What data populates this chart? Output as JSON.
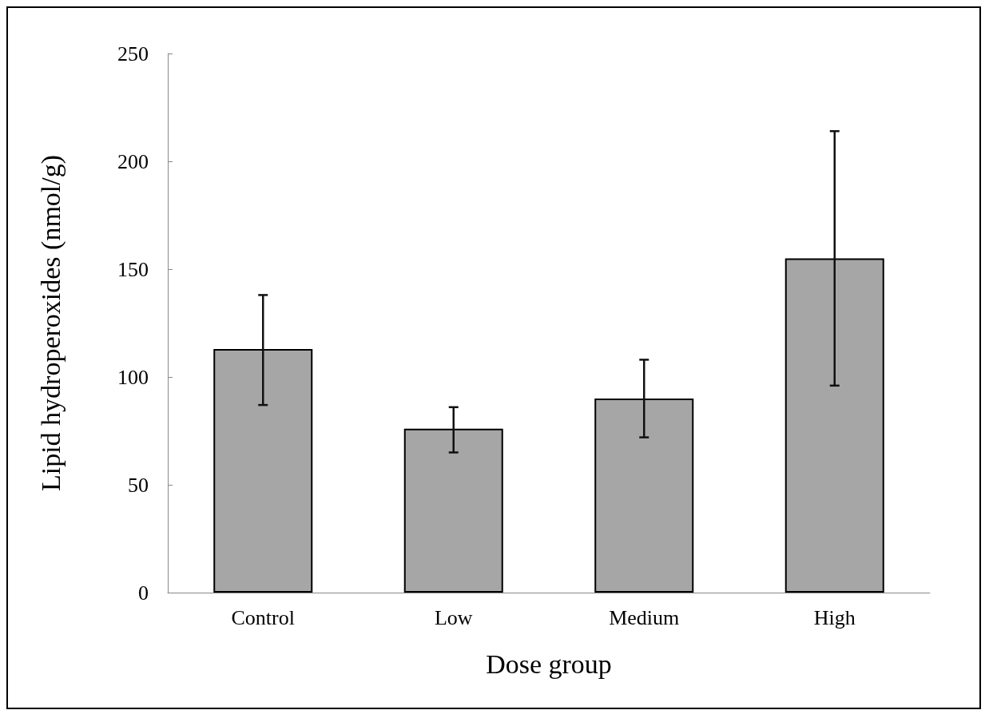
{
  "chart_data": {
    "type": "bar",
    "xlabel": "Dose group",
    "ylabel": "Lipid hydroperoxides (nmol/g)",
    "categories": [
      "Control",
      "Low",
      "Medium",
      "High"
    ],
    "values": [
      113,
      76,
      90,
      155
    ],
    "errors": [
      [
        87,
        138
      ],
      [
        65,
        86
      ],
      [
        72,
        108
      ],
      [
        96,
        214
      ]
    ],
    "color": "#a6a6a6",
    "ylim": [
      0,
      250
    ],
    "yticks": [
      0,
      50,
      100,
      150,
      200,
      250
    ],
    "grid": false
  }
}
